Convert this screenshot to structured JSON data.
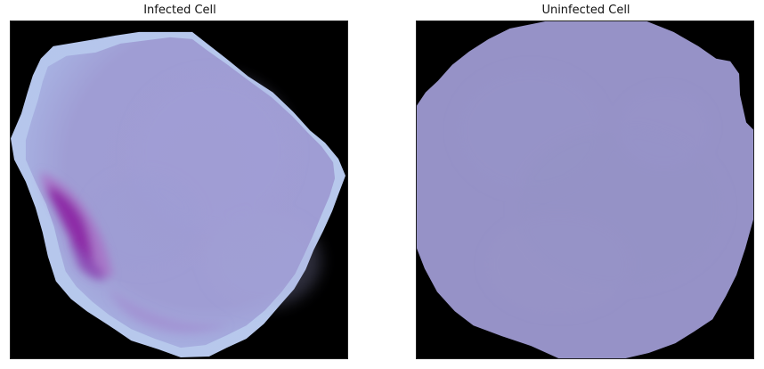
{
  "figure": {
    "panels": [
      {
        "title": "Infected Cell"
      },
      {
        "title": "Uninfected Cell"
      }
    ]
  },
  "colors": {
    "background": "#000000",
    "infected_cell": "#9C9BD1",
    "infected_edge": "#AFC3E5",
    "parasite_stain": "#8B2BA8",
    "uninfected_cell": "#9692C7"
  }
}
